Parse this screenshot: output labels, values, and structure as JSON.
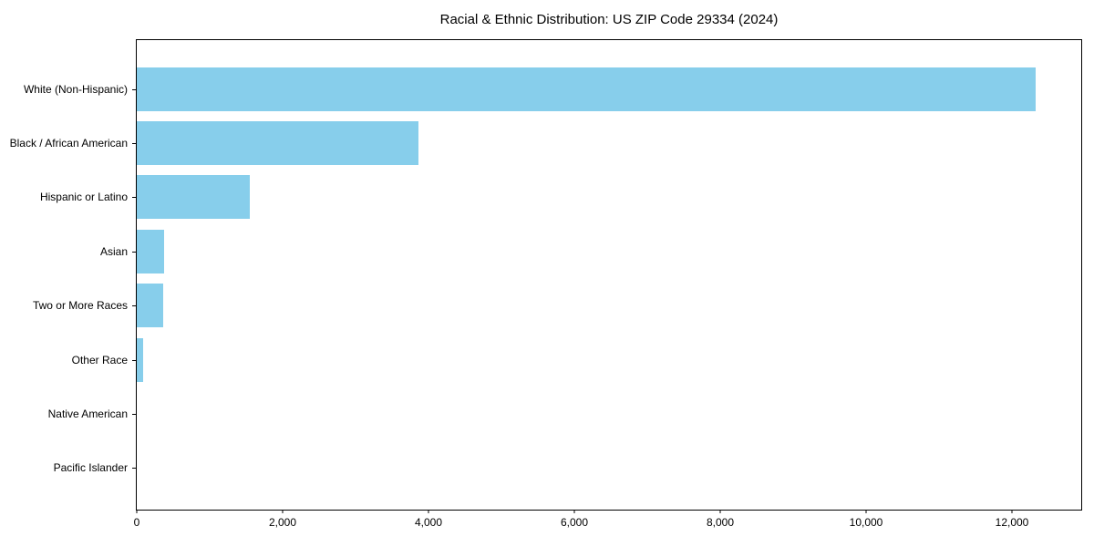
{
  "title": "Racial & Ethnic Distribution: US ZIP Code 29334 (2024)",
  "chart_data": {
    "type": "bar",
    "orientation": "horizontal",
    "title": "Racial & Ethnic Distribution: US ZIP Code 29334 (2024)",
    "xlabel": "",
    "ylabel": "",
    "categories": [
      "White (Non-Hispanic)",
      "Black / African American",
      "Hispanic or Latino",
      "Asian",
      "Two or More Races",
      "Other Race",
      "Native American",
      "Pacific Islander"
    ],
    "values": [
      12325,
      3860,
      1550,
      380,
      360,
      85,
      0,
      0
    ],
    "xlim": [
      0,
      12950
    ],
    "x_ticks": [
      0,
      2000,
      4000,
      6000,
      8000,
      10000,
      12000
    ],
    "x_tick_labels": [
      "0",
      "2,000",
      "4,000",
      "6,000",
      "8,000",
      "10,000",
      "12,000"
    ],
    "bar_color": "#87CEEB",
    "grid": false,
    "legend": "none"
  }
}
